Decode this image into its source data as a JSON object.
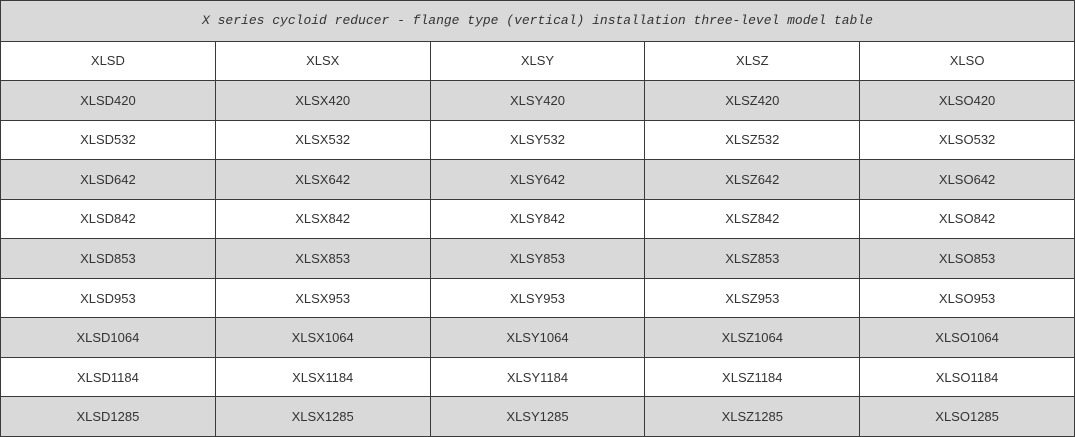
{
  "title": "X series cycloid reducer - flange type (vertical) installation three-level model table",
  "headers": [
    "XLSD",
    "XLSX",
    "XLSY",
    "XLSZ",
    "XLSO"
  ],
  "rows": [
    [
      "XLSD420",
      "XLSX420",
      "XLSY420",
      "XLSZ420",
      "XLSO420"
    ],
    [
      "XLSD532",
      "XLSX532",
      "XLSY532",
      "XLSZ532",
      "XLSO532"
    ],
    [
      "XLSD642",
      "XLSX642",
      "XLSY642",
      "XLSZ642",
      "XLSO642"
    ],
    [
      "XLSD842",
      "XLSX842",
      "XLSY842",
      "XLSZ842",
      "XLSO842"
    ],
    [
      "XLSD853",
      "XLSX853",
      "XLSY853",
      "XLSZ853",
      "XLSO853"
    ],
    [
      "XLSD953",
      "XLSX953",
      "XLSY953",
      "XLSZ953",
      "XLSO953"
    ],
    [
      "XLSD1064",
      "XLSX1064",
      "XLSY1064",
      "XLSZ1064",
      "XLSO1064"
    ],
    [
      "XLSD1184",
      "XLSX1184",
      "XLSY1184",
      "XLSZ1184",
      "XLSO1184"
    ],
    [
      "XLSD1285",
      "XLSX1285",
      "XLSY1285",
      "XLSZ1285",
      "XLSO1285"
    ]
  ],
  "colors": {
    "shaded_row": "#d9d9d9",
    "border": "#3a3a3a"
  }
}
